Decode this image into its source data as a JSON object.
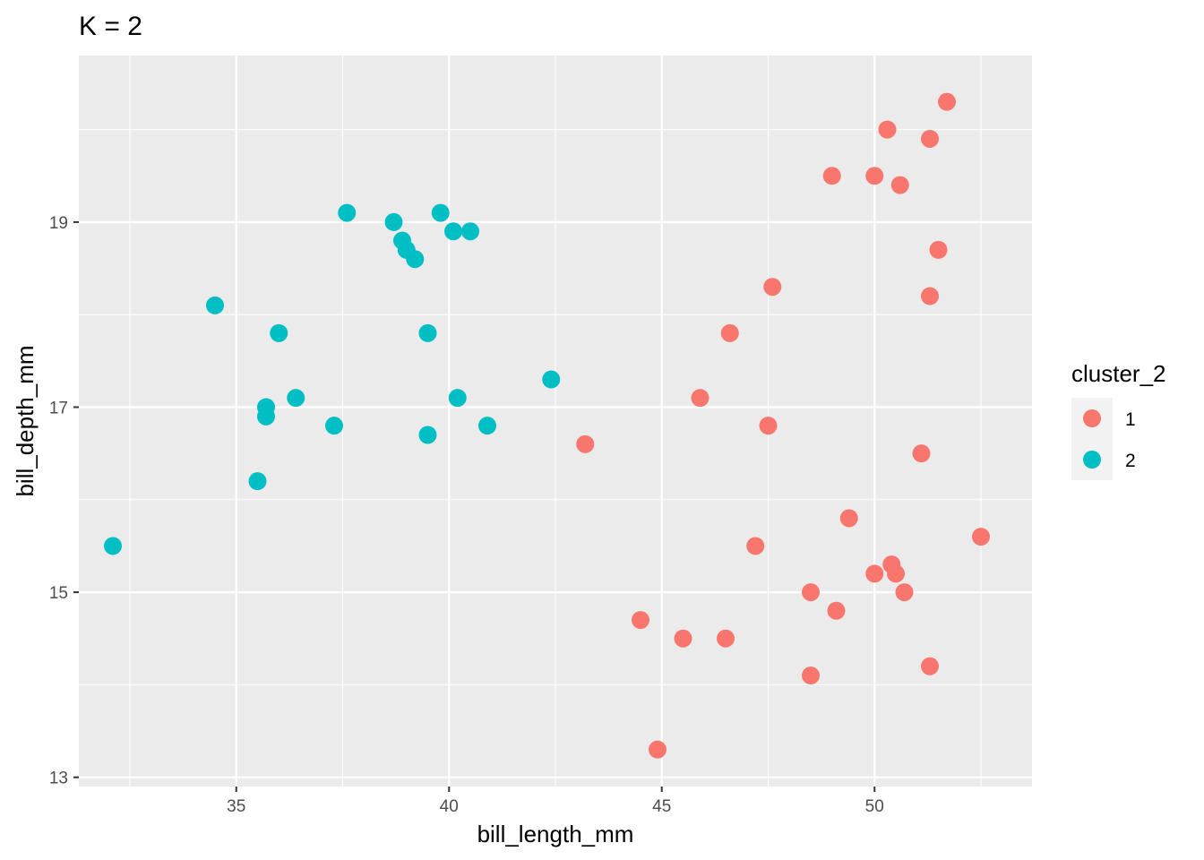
{
  "chart_data": {
    "type": "scatter",
    "title": "K = 2",
    "xlabel": "bill_length_mm",
    "ylabel": "bill_depth_mm",
    "xlim": [
      31.3,
      53.7
    ],
    "ylim": [
      12.9,
      20.8
    ],
    "x_ticks": [
      35,
      40,
      45,
      50
    ],
    "y_ticks": [
      13,
      15,
      17,
      19
    ],
    "grid": true,
    "legend": {
      "title": "cluster_2",
      "position": "right"
    },
    "series": [
      {
        "name": "1",
        "color": "#F8766D",
        "points": [
          [
            51.7,
            20.3
          ],
          [
            50.3,
            20.0
          ],
          [
            51.3,
            19.9
          ],
          [
            49.0,
            19.5
          ],
          [
            50.0,
            19.5
          ],
          [
            50.6,
            19.4
          ],
          [
            51.5,
            18.7
          ],
          [
            47.6,
            18.3
          ],
          [
            51.3,
            18.2
          ],
          [
            46.6,
            17.8
          ],
          [
            45.9,
            17.1
          ],
          [
            47.5,
            16.8
          ],
          [
            43.2,
            16.6
          ],
          [
            51.1,
            16.5
          ],
          [
            49.4,
            15.8
          ],
          [
            52.5,
            15.6
          ],
          [
            47.2,
            15.5
          ],
          [
            50.4,
            15.3
          ],
          [
            50.0,
            15.2
          ],
          [
            50.5,
            15.2
          ],
          [
            48.5,
            15.0
          ],
          [
            50.7,
            15.0
          ],
          [
            49.1,
            14.8
          ],
          [
            44.5,
            14.7
          ],
          [
            45.5,
            14.5
          ],
          [
            46.5,
            14.5
          ],
          [
            51.3,
            14.2
          ],
          [
            48.5,
            14.1
          ],
          [
            44.9,
            13.3
          ]
        ]
      },
      {
        "name": "2",
        "color": "#00BFC4",
        "points": [
          [
            37.6,
            19.1
          ],
          [
            39.8,
            19.1
          ],
          [
            38.7,
            19.0
          ],
          [
            40.1,
            18.9
          ],
          [
            40.5,
            18.9
          ],
          [
            38.9,
            18.8
          ],
          [
            39.0,
            18.7
          ],
          [
            39.2,
            18.6
          ],
          [
            34.5,
            18.1
          ],
          [
            36.0,
            17.8
          ],
          [
            39.5,
            17.8
          ],
          [
            42.4,
            17.3
          ],
          [
            36.4,
            17.1
          ],
          [
            40.2,
            17.1
          ],
          [
            35.7,
            17.0
          ],
          [
            35.7,
            16.9
          ],
          [
            37.3,
            16.8
          ],
          [
            40.9,
            16.8
          ],
          [
            39.5,
            16.7
          ],
          [
            35.5,
            16.2
          ],
          [
            32.1,
            15.5
          ]
        ]
      }
    ]
  }
}
